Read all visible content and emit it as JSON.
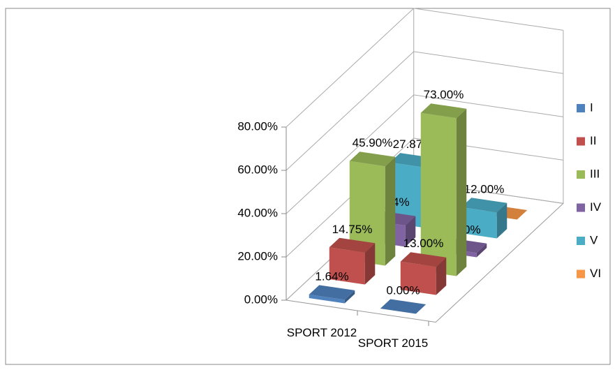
{
  "chart_data": {
    "type": "bar3d",
    "categories": [
      "SPORT 2012",
      "SPORT 2015"
    ],
    "series": [
      {
        "name": "I",
        "color": "#4f81bd",
        "values": [
          1.64,
          0.0
        ],
        "value_labels": [
          "1.64%",
          "0.00%"
        ]
      },
      {
        "name": "II",
        "color": "#c0504d",
        "values": [
          14.75,
          13.0
        ],
        "value_labels": [
          "14.75%",
          "13.00%"
        ]
      },
      {
        "name": "III",
        "color": "#9bbb59",
        "values": [
          45.9,
          73.0
        ],
        "value_labels": [
          "45.90%",
          "73.00%"
        ]
      },
      {
        "name": "IV",
        "color": "#8064a2",
        "values": [
          9.84,
          2.0
        ],
        "value_labels": [
          "9.84%",
          "2.00%"
        ]
      },
      {
        "name": "V",
        "color": "#4bacc6",
        "values": [
          27.87,
          12.0
        ],
        "value_labels": [
          "27.87%",
          "12.00%"
        ]
      },
      {
        "name": "VI",
        "color": "#f79646",
        "values": [
          null,
          0
        ],
        "value_labels": [
          null,
          null
        ]
      }
    ],
    "ylim": [
      0,
      80
    ],
    "yticks": [
      {
        "value": 0,
        "label": "0.00%"
      },
      {
        "value": 20,
        "label": "20.00%"
      },
      {
        "value": 40,
        "label": "40.00%"
      },
      {
        "value": 60,
        "label": "60.00%"
      },
      {
        "value": 80,
        "label": "80.00%"
      }
    ],
    "grid": true,
    "legend": "right"
  }
}
